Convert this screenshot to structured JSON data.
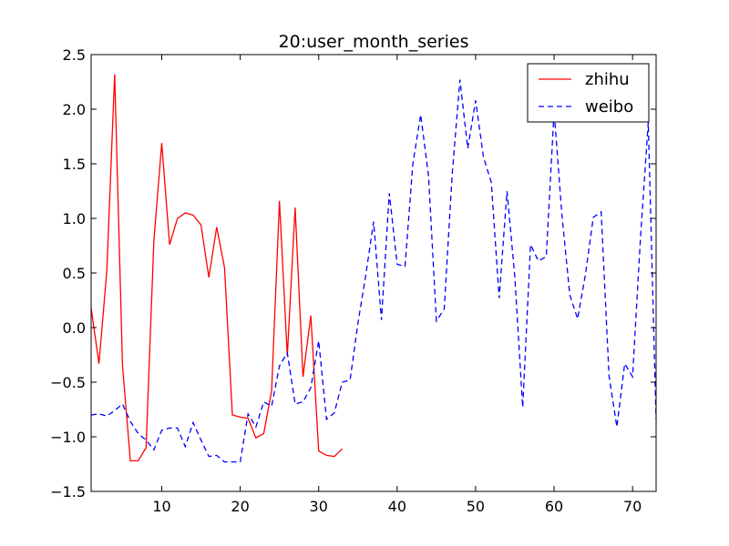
{
  "chart_data": {
    "type": "line",
    "title": "20:user_month_series",
    "xlabel": "",
    "ylabel": "",
    "xlim": [
      1,
      73
    ],
    "ylim": [
      -1.5,
      2.5
    ],
    "x_ticks": [
      10,
      20,
      30,
      40,
      50,
      60,
      70
    ],
    "y_ticks": [
      -1.5,
      -1.0,
      -0.5,
      0.0,
      0.5,
      1.0,
      1.5,
      2.0,
      2.5
    ],
    "y_tick_labels": [
      "−1.5",
      "−1.0",
      "−0.5",
      "0.0",
      "0.5",
      "1.0",
      "1.5",
      "2.0",
      "2.5"
    ],
    "grid": false,
    "legend_position": "top-right",
    "series": [
      {
        "name": "zhihu",
        "color": "#ff0000",
        "style": "solid",
        "x": [
          1,
          2,
          3,
          4,
          5,
          6,
          7,
          8,
          9,
          10,
          11,
          12,
          13,
          14,
          15,
          16,
          17,
          18,
          19,
          20,
          21,
          22,
          23,
          24,
          25,
          26,
          27,
          28,
          29,
          30,
          31,
          32,
          33
        ],
        "values": [
          0.18,
          -0.33,
          0.52,
          2.32,
          -0.35,
          -1.22,
          -1.22,
          -1.1,
          0.8,
          1.69,
          0.76,
          1.0,
          1.05,
          1.03,
          0.94,
          0.46,
          0.92,
          0.55,
          -0.8,
          -0.82,
          -0.83,
          -1.01,
          -0.97,
          -0.58,
          1.16,
          -0.26,
          1.1,
          -0.45,
          0.11,
          -1.13,
          -1.17,
          -1.18,
          -1.11
        ]
      },
      {
        "name": "weibo",
        "color": "#0000ff",
        "style": "dashed",
        "x": [
          1,
          2,
          3,
          4,
          5,
          6,
          7,
          8,
          9,
          10,
          11,
          12,
          13,
          14,
          15,
          16,
          17,
          18,
          19,
          20,
          21,
          22,
          23,
          24,
          25,
          26,
          27,
          28,
          29,
          30,
          31,
          32,
          33,
          34,
          35,
          36,
          37,
          38,
          39,
          40,
          41,
          42,
          43,
          44,
          45,
          46,
          47,
          48,
          49,
          50,
          51,
          52,
          53,
          54,
          55,
          56,
          57,
          58,
          59,
          60,
          61,
          62,
          63,
          64,
          65,
          66,
          67,
          68,
          69,
          70,
          71,
          72,
          73
        ],
        "values": [
          -0.8,
          -0.79,
          -0.81,
          -0.76,
          -0.7,
          -0.86,
          -0.97,
          -1.03,
          -1.12,
          -0.94,
          -0.92,
          -0.92,
          -1.09,
          -0.87,
          -1.03,
          -1.18,
          -1.17,
          -1.23,
          -1.23,
          -1.23,
          -0.79,
          -0.91,
          -0.68,
          -0.72,
          -0.35,
          -0.23,
          -0.7,
          -0.68,
          -0.55,
          -0.12,
          -0.84,
          -0.78,
          -0.5,
          -0.48,
          0.04,
          0.48,
          0.97,
          0.07,
          1.23,
          0.58,
          0.56,
          1.5,
          1.95,
          1.39,
          0.06,
          0.17,
          1.39,
          2.27,
          1.64,
          2.08,
          1.56,
          1.33,
          0.27,
          1.25,
          0.46,
          -0.73,
          0.76,
          0.61,
          0.65,
          1.98,
          1.03,
          0.3,
          0.08,
          0.49,
          1.01,
          1.06,
          -0.44,
          -0.91,
          -0.33,
          -0.45,
          0.81,
          1.88,
          -0.84
        ]
      }
    ]
  }
}
